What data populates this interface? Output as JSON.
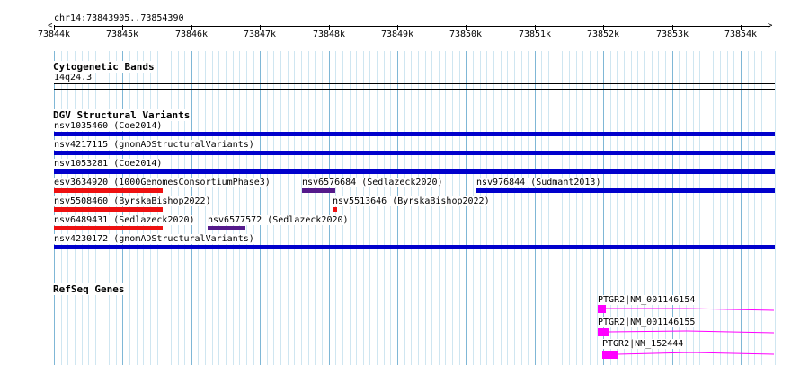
{
  "ruler": {
    "location": "chr14:73843905..73854390",
    "ticks": [
      "73844k",
      "73845k",
      "73846k",
      "73847k",
      "73848k",
      "73849k",
      "73850k",
      "73851k",
      "73852k",
      "73853k",
      "73854k"
    ]
  },
  "cytoband": {
    "title": "Cytogenetic Bands",
    "band": "14q24.3"
  },
  "dgv": {
    "title": "DGV Structural Variants",
    "features": [
      {
        "label": "nsv1035460 (Coe2014)",
        "color": "#0000cc"
      },
      {
        "label": "nsv4217115 (gnomADStructuralVariants)",
        "color": "#0000cc"
      },
      {
        "label": "nsv1053281 (Coe2014)",
        "color": "#0000cc"
      },
      {
        "label": "esv3634920 (1000GenomesConsortiumPhase3)",
        "color": "#ee1111"
      },
      {
        "label": "nsv6576684 (Sedlazeck2020)",
        "color": "#551a8b"
      },
      {
        "label": "nsv976844 (Sudmant2013)",
        "color": "#0000cc"
      },
      {
        "label": "nsv5508460 (ByrskaBishop2022)",
        "color": "#ee1111"
      },
      {
        "label": "nsv5513646 (ByrskaBishop2022)",
        "color": "#ee1111"
      },
      {
        "label": "nsv6489431 (Sedlazeck2020)",
        "color": "#ee1111"
      },
      {
        "label": "nsv6577572 (Sedlazeck2020)",
        "color": "#551a8b"
      },
      {
        "label": "nsv4230172 (gnomADStructuralVariants)",
        "color": "#0000cc"
      }
    ]
  },
  "refseq": {
    "title": "RefSeq Genes",
    "features": [
      {
        "label": "PTGR2|NM_001146154",
        "color": "#ff00ff"
      },
      {
        "label": "PTGR2|NM_001146155",
        "color": "#ff00ff"
      },
      {
        "label": "PTGR2|NM_152444",
        "color": "#ff00ff"
      }
    ]
  }
}
